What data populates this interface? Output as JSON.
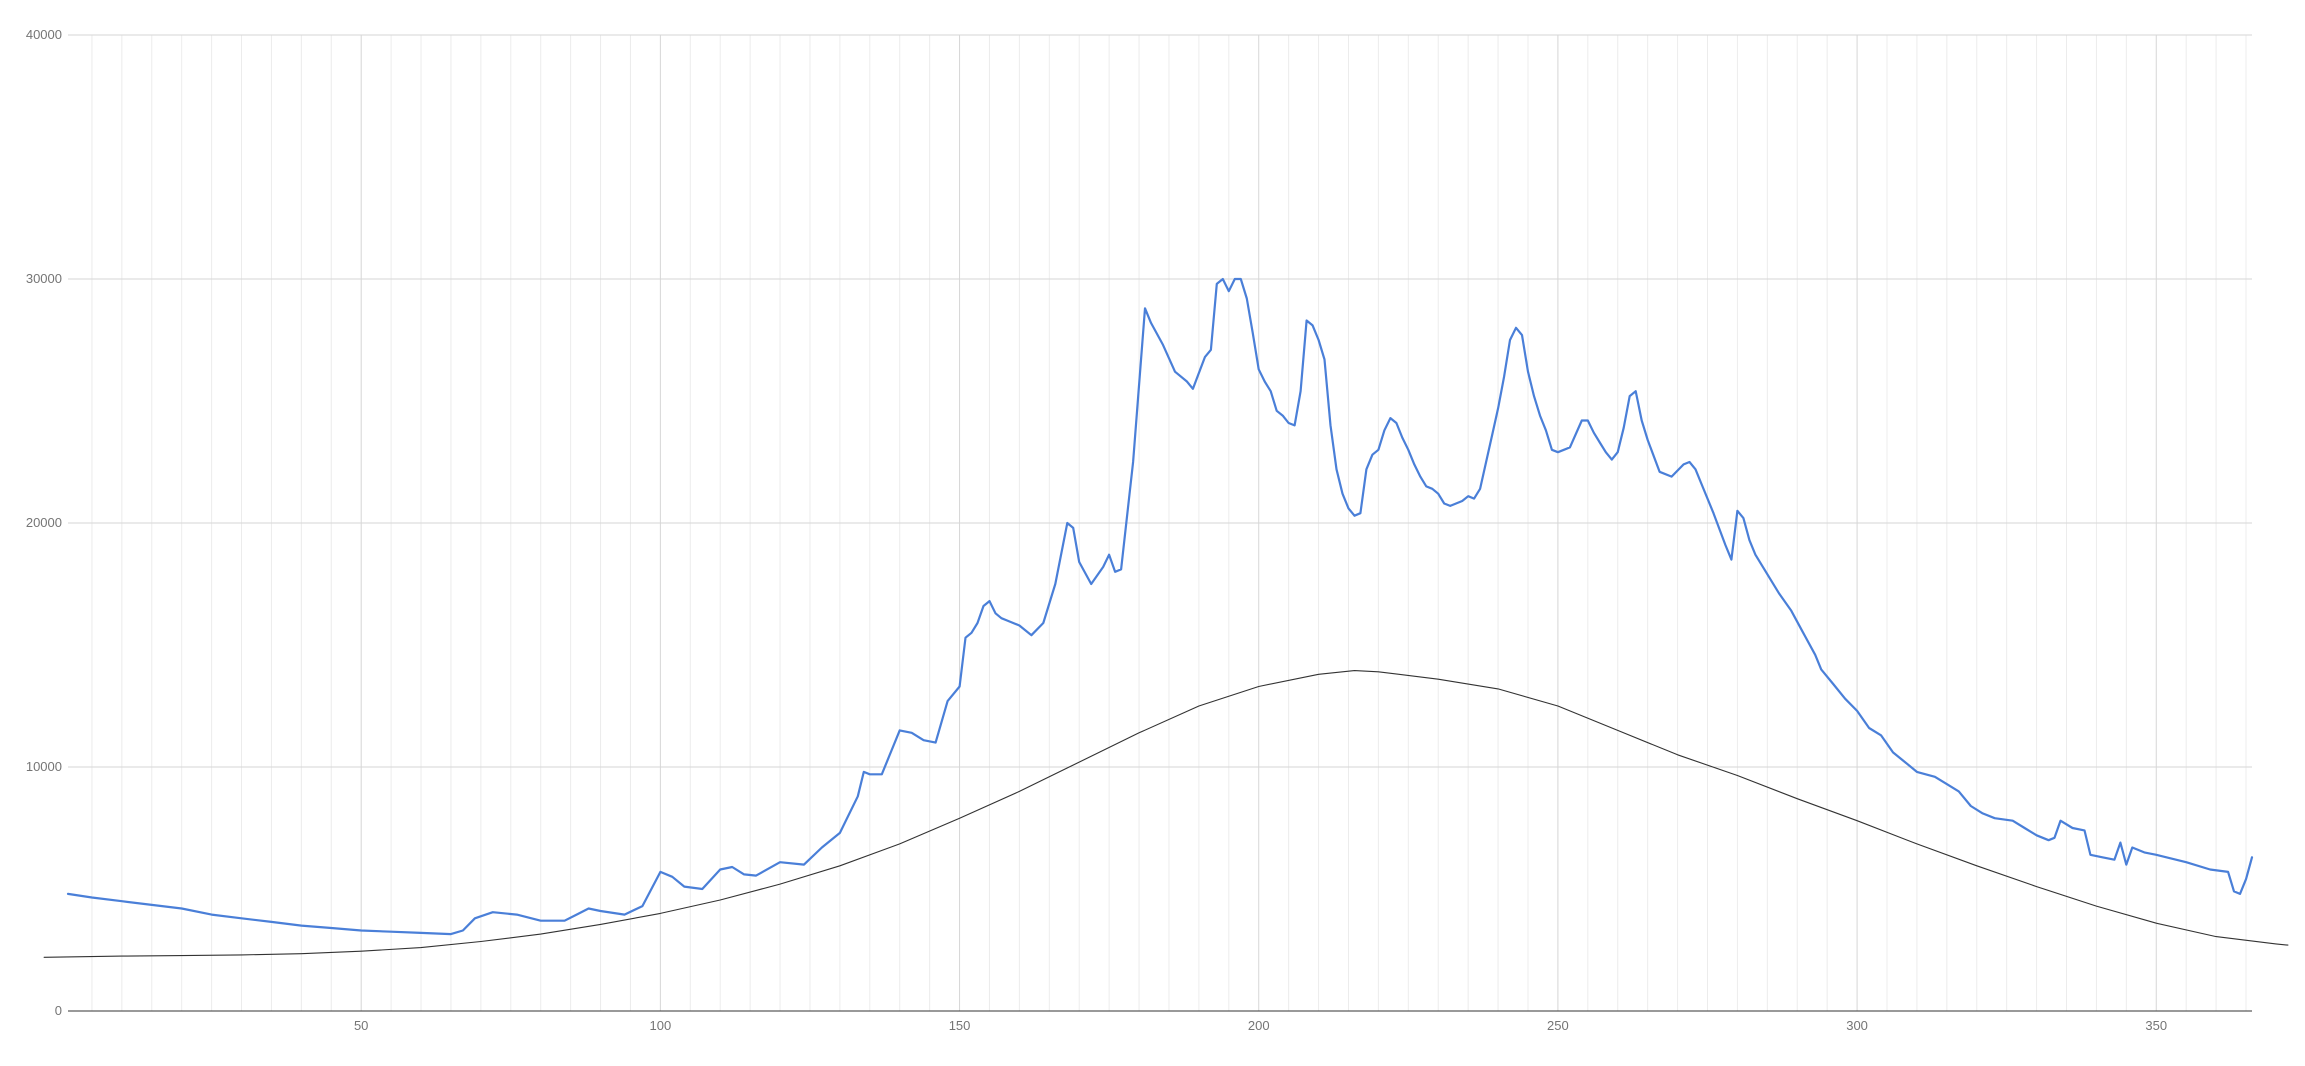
{
  "chart_data": {
    "type": "line",
    "title": "",
    "xlabel": "",
    "ylabel": "",
    "xlim": [
      1,
      366
    ],
    "ylim": [
      0,
      40000
    ],
    "x_ticks": [
      50,
      100,
      150,
      200,
      250,
      300,
      350
    ],
    "y_ticks": [
      0,
      10000,
      20000,
      30000,
      40000
    ],
    "grid": true,
    "legend": "none",
    "series": [
      {
        "color": "#4a7fd8",
        "points": [
          [
            1,
            4800
          ],
          [
            5,
            4650
          ],
          [
            10,
            4500
          ],
          [
            15,
            4350
          ],
          [
            20,
            4200
          ],
          [
            25,
            3950
          ],
          [
            30,
            3800
          ],
          [
            35,
            3650
          ],
          [
            40,
            3500
          ],
          [
            45,
            3400
          ],
          [
            50,
            3300
          ],
          [
            55,
            3250
          ],
          [
            60,
            3200
          ],
          [
            65,
            3150
          ],
          [
            67,
            3300
          ],
          [
            69,
            3800
          ],
          [
            72,
            4050
          ],
          [
            76,
            3950
          ],
          [
            80,
            3700
          ],
          [
            84,
            3700
          ],
          [
            86,
            3950
          ],
          [
            88,
            4200
          ],
          [
            90,
            4100
          ],
          [
            94,
            3950
          ],
          [
            97,
            4300
          ],
          [
            100,
            5700
          ],
          [
            102,
            5500
          ],
          [
            104,
            5100
          ],
          [
            107,
            5000
          ],
          [
            110,
            5800
          ],
          [
            112,
            5900
          ],
          [
            114,
            5600
          ],
          [
            116,
            5550
          ],
          [
            120,
            6100
          ],
          [
            124,
            6000
          ],
          [
            127,
            6700
          ],
          [
            130,
            7300
          ],
          [
            133,
            8800
          ],
          [
            134,
            9800
          ],
          [
            135,
            9700
          ],
          [
            137,
            9700
          ],
          [
            140,
            11500
          ],
          [
            142,
            11400
          ],
          [
            144,
            11100
          ],
          [
            146,
            11000
          ],
          [
            148,
            12700
          ],
          [
            150,
            13300
          ],
          [
            151,
            15300
          ],
          [
            152,
            15500
          ],
          [
            153,
            15900
          ],
          [
            154,
            16600
          ],
          [
            155,
            16800
          ],
          [
            156,
            16300
          ],
          [
            157,
            16100
          ],
          [
            158,
            16000
          ],
          [
            160,
            15800
          ],
          [
            162,
            15400
          ],
          [
            164,
            15900
          ],
          [
            166,
            17500
          ],
          [
            168,
            20000
          ],
          [
            169,
            19800
          ],
          [
            170,
            18400
          ],
          [
            172,
            17500
          ],
          [
            174,
            18200
          ],
          [
            175,
            18700
          ],
          [
            176,
            18000
          ],
          [
            177,
            18100
          ],
          [
            179,
            22500
          ],
          [
            181,
            28800
          ],
          [
            182,
            28200
          ],
          [
            184,
            27300
          ],
          [
            186,
            26200
          ],
          [
            188,
            25800
          ],
          [
            189,
            25500
          ],
          [
            191,
            26800
          ],
          [
            192,
            27100
          ],
          [
            193,
            29800
          ],
          [
            194,
            30000
          ],
          [
            195,
            29500
          ],
          [
            196,
            30000
          ],
          [
            197,
            30000
          ],
          [
            198,
            29200
          ],
          [
            199,
            27800
          ],
          [
            200,
            26300
          ],
          [
            201,
            25800
          ],
          [
            202,
            25400
          ],
          [
            203,
            24600
          ],
          [
            204,
            24400
          ],
          [
            205,
            24100
          ],
          [
            206,
            24000
          ],
          [
            207,
            25400
          ],
          [
            208,
            28300
          ],
          [
            209,
            28100
          ],
          [
            210,
            27500
          ],
          [
            211,
            26700
          ],
          [
            212,
            24000
          ],
          [
            213,
            22200
          ],
          [
            214,
            21200
          ],
          [
            215,
            20600
          ],
          [
            216,
            20300
          ],
          [
            217,
            20400
          ],
          [
            218,
            22200
          ],
          [
            219,
            22800
          ],
          [
            220,
            23000
          ],
          [
            221,
            23800
          ],
          [
            222,
            24300
          ],
          [
            223,
            24100
          ],
          [
            224,
            23500
          ],
          [
            225,
            23000
          ],
          [
            226,
            22400
          ],
          [
            227,
            21900
          ],
          [
            228,
            21500
          ],
          [
            229,
            21400
          ],
          [
            230,
            21200
          ],
          [
            231,
            20800
          ],
          [
            232,
            20700
          ],
          [
            234,
            20900
          ],
          [
            235,
            21100
          ],
          [
            236,
            21000
          ],
          [
            237,
            21400
          ],
          [
            239,
            23600
          ],
          [
            240,
            24700
          ],
          [
            241,
            26000
          ],
          [
            242,
            27500
          ],
          [
            243,
            28000
          ],
          [
            244,
            27700
          ],
          [
            245,
            26200
          ],
          [
            246,
            25200
          ],
          [
            247,
            24400
          ],
          [
            248,
            23800
          ],
          [
            249,
            23000
          ],
          [
            250,
            22900
          ],
          [
            251,
            23000
          ],
          [
            252,
            23100
          ],
          [
            254,
            24200
          ],
          [
            255,
            24200
          ],
          [
            256,
            23700
          ],
          [
            257,
            23300
          ],
          [
            258,
            22900
          ],
          [
            259,
            22600
          ],
          [
            260,
            22900
          ],
          [
            261,
            23900
          ],
          [
            262,
            25200
          ],
          [
            263,
            25400
          ],
          [
            264,
            24200
          ],
          [
            265,
            23400
          ],
          [
            267,
            22100
          ],
          [
            269,
            21900
          ],
          [
            271,
            22400
          ],
          [
            272,
            22500
          ],
          [
            273,
            22200
          ],
          [
            274,
            21600
          ],
          [
            276,
            20400
          ],
          [
            278,
            19100
          ],
          [
            279,
            18500
          ],
          [
            280,
            20500
          ],
          [
            281,
            20200
          ],
          [
            282,
            19300
          ],
          [
            283,
            18700
          ],
          [
            285,
            17900
          ],
          [
            287,
            17100
          ],
          [
            289,
            16400
          ],
          [
            291,
            15500
          ],
          [
            293,
            14600
          ],
          [
            294,
            14000
          ],
          [
            296,
            13400
          ],
          [
            298,
            12800
          ],
          [
            300,
            12300
          ],
          [
            302,
            11600
          ],
          [
            304,
            11300
          ],
          [
            306,
            10600
          ],
          [
            308,
            10200
          ],
          [
            310,
            9800
          ],
          [
            313,
            9600
          ],
          [
            315,
            9300
          ],
          [
            317,
            9000
          ],
          [
            319,
            8400
          ],
          [
            321,
            8100
          ],
          [
            323,
            7900
          ],
          [
            326,
            7800
          ],
          [
            328,
            7500
          ],
          [
            330,
            7200
          ],
          [
            332,
            7000
          ],
          [
            333,
            7100
          ],
          [
            334,
            7800
          ],
          [
            336,
            7500
          ],
          [
            338,
            7400
          ],
          [
            339,
            6400
          ],
          [
            341,
            6300
          ],
          [
            343,
            6200
          ],
          [
            344,
            6900
          ],
          [
            345,
            6000
          ],
          [
            346,
            6700
          ],
          [
            348,
            6500
          ],
          [
            350,
            6400
          ],
          [
            355,
            6100
          ],
          [
            359,
            5800
          ],
          [
            362,
            5700
          ],
          [
            363,
            4900
          ],
          [
            364,
            4800
          ],
          [
            365,
            5400
          ],
          [
            366,
            6300
          ]
        ]
      },
      {
        "color": "#333333",
        "points": [
          [
            -3,
            2200
          ],
          [
            10,
            2250
          ],
          [
            20,
            2270
          ],
          [
            30,
            2300
          ],
          [
            40,
            2350
          ],
          [
            50,
            2450
          ],
          [
            60,
            2600
          ],
          [
            70,
            2850
          ],
          [
            80,
            3150
          ],
          [
            90,
            3550
          ],
          [
            100,
            4000
          ],
          [
            110,
            4550
          ],
          [
            120,
            5200
          ],
          [
            130,
            5950
          ],
          [
            140,
            6850
          ],
          [
            150,
            7900
          ],
          [
            160,
            9000
          ],
          [
            170,
            10200
          ],
          [
            180,
            11400
          ],
          [
            190,
            12500
          ],
          [
            200,
            13300
          ],
          [
            210,
            13800
          ],
          [
            216,
            13950
          ],
          [
            220,
            13900
          ],
          [
            230,
            13600
          ],
          [
            240,
            13200
          ],
          [
            250,
            12500
          ],
          [
            260,
            11500
          ],
          [
            270,
            10500
          ],
          [
            280,
            9650
          ],
          [
            290,
            8700
          ],
          [
            300,
            7800
          ],
          [
            310,
            6850
          ],
          [
            320,
            5950
          ],
          [
            330,
            5100
          ],
          [
            340,
            4300
          ],
          [
            350,
            3600
          ],
          [
            360,
            3050
          ],
          [
            370,
            2750
          ],
          [
            372,
            2700
          ]
        ]
      }
    ]
  }
}
